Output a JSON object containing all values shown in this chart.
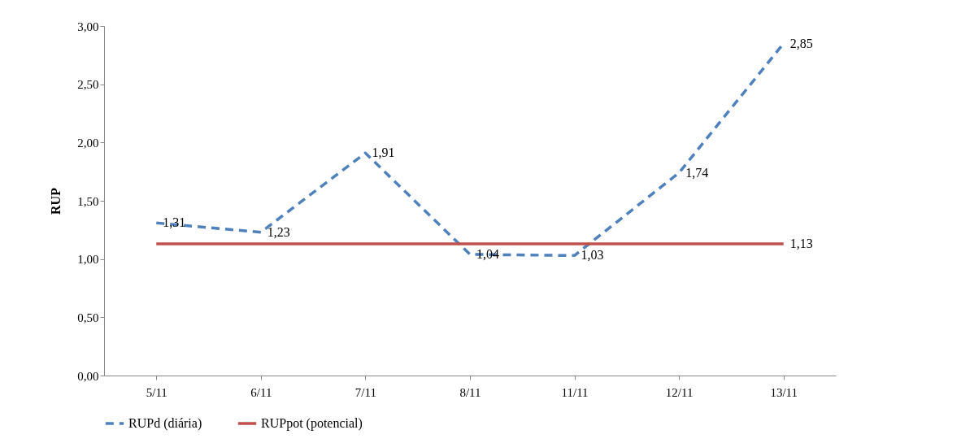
{
  "chart_data": {
    "type": "line",
    "ylabel": "RUP",
    "categories": [
      "5/11",
      "6/11",
      "7/11",
      "8/11",
      "11/11",
      "12/11",
      "13/11"
    ],
    "series": [
      {
        "name": "RUPd     (diária)",
        "color": "#4f81bd",
        "line_style": "dashed",
        "values": [
          1.31,
          1.23,
          1.91,
          1.04,
          1.03,
          1.74,
          2.85
        ],
        "value_labels": [
          "1,31",
          "1,23",
          "1,91",
          "1,04",
          "1,03",
          "1,74",
          "2,85"
        ]
      },
      {
        "name": "RUPpot (potencial)",
        "color": "#c0504d",
        "line_style": "solid",
        "values": [
          1.13,
          1.13,
          1.13,
          1.13,
          1.13,
          1.13,
          1.13
        ],
        "value_labels": [
          null,
          null,
          null,
          null,
          null,
          null,
          "1,13"
        ]
      }
    ],
    "ylim": [
      0,
      3
    ],
    "yticks": [
      {
        "value": 0,
        "label": "0,00"
      },
      {
        "value": 0.5,
        "label": "0,50"
      },
      {
        "value": 1,
        "label": "1,00"
      },
      {
        "value": 1.5,
        "label": "1,50"
      },
      {
        "value": 2,
        "label": "2,00"
      },
      {
        "value": 2.5,
        "label": "2,50"
      },
      {
        "value": 3,
        "label": "3,00"
      }
    ],
    "grid": false,
    "legend": "bottom",
    "marker": "none"
  }
}
